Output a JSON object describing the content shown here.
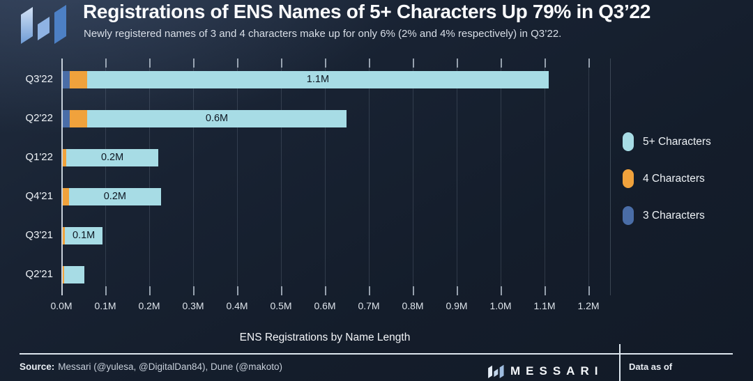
{
  "header": {
    "title": "Registrations of ENS Names of 5+ Characters Up 79% in Q3’22",
    "subtitle": "Newly registered names of 3 and 4 characters make up for only 6% (2% and 4% respectively) in Q3’22."
  },
  "chart_data": {
    "type": "bar",
    "orientation": "horizontal",
    "stacked": true,
    "title": "Registrations of ENS Names of 5+ Characters Up 79% in Q3’22",
    "xlabel": "ENS Registrations by Name Length",
    "x_unit": "millions of registrations",
    "xlim": [
      0,
      1.25
    ],
    "x_ticks": [
      "0.0M",
      "0.1M",
      "0.2M",
      "0.3M",
      "0.4M",
      "0.5M",
      "0.6M",
      "0.7M",
      "0.8M",
      "0.9M",
      "1.0M",
      "1.1M",
      "1.2M"
    ],
    "grid": "vertical",
    "legend_position": "right",
    "categories": [
      "Q3'22",
      "Q2'22",
      "Q1'22",
      "Q4'21",
      "Q3'21",
      "Q2'21"
    ],
    "series": [
      {
        "name": "3 Characters",
        "color": "#4a6da7",
        "values": [
          0.019,
          0.019,
          0.003,
          0.003,
          0.002,
          0.002
        ]
      },
      {
        "name": "4 Characters",
        "color": "#f0a23c",
        "values": [
          0.04,
          0.04,
          0.008,
          0.014,
          0.006,
          0.004
        ]
      },
      {
        "name": "5+ Characters",
        "color": "#a7dce5",
        "values": [
          1.05,
          0.59,
          0.21,
          0.21,
          0.086,
          0.046
        ]
      }
    ],
    "bar_labels": [
      "1.1M",
      "0.6M",
      "0.2M",
      "0.2M",
      "0.1M",
      ""
    ]
  },
  "legend": {
    "items": [
      {
        "label": "5+ Characters",
        "color": "#a7dce5"
      },
      {
        "label": "4 Characters",
        "color": "#f0a23c"
      },
      {
        "label": "3 Characters",
        "color": "#4a6da7"
      }
    ]
  },
  "footer": {
    "source_label": "Source:",
    "source_text": "Messari (@yulesa, @DigitalDan84), Dune (@makoto)",
    "brand_wordmark": "MESSARI",
    "data_as_of_label": "Data as of"
  },
  "colors": {
    "background_top": "#202c3e",
    "background_bottom": "#121a27",
    "bar_5plus_characters": "#a7dce5",
    "bar_4_characters": "#f0a23c",
    "bar_3_characters": "#4a6da7",
    "axis_line": "#d0d9e3",
    "text_primary": "#fbfcfe",
    "text_secondary": "#d9dfe8",
    "bar_label_text": "#0e1621"
  }
}
